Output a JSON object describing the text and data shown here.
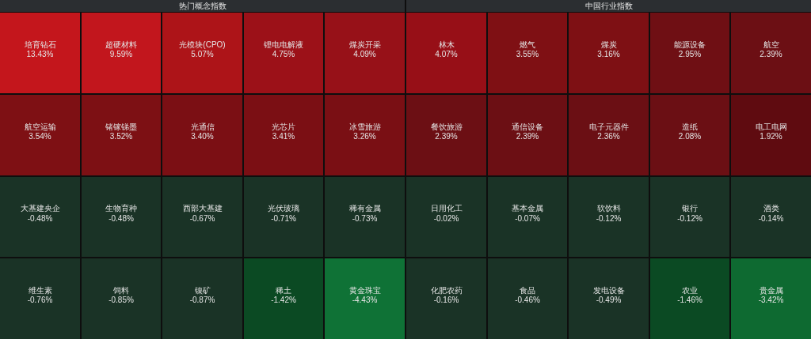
{
  "chart_data": [
    {
      "type": "other",
      "title": "热门概念指数",
      "categories": [
        "培育钻石",
        "超硬材料",
        "光模块(CPO)",
        "锂电电解液",
        "煤炭开采",
        "航空运输",
        "锗镓锑墨",
        "光通信",
        "光芯片",
        "冰雪旅游",
        "大基建央企",
        "生物育种",
        "西部大基建",
        "光伏玻璃",
        "稀有金属",
        "维生素",
        "饲料",
        "镍矿",
        "稀土",
        "黄金珠宝"
      ],
      "values": [
        13.43,
        9.59,
        5.07,
        4.75,
        4.09,
        3.54,
        3.52,
        3.4,
        3.41,
        3.26,
        -0.48,
        -0.48,
        -0.67,
        -0.71,
        -0.73,
        -0.76,
        -0.85,
        -0.87,
        -1.42,
        -4.43
      ],
      "value_labels": [
        "13.43%",
        "9.59%",
        "5.07%",
        "4.75%",
        "4.09%",
        "3.54%",
        "3.52%",
        "3.40%",
        "3.41%",
        "3.26%",
        "-0.48%",
        "-0.48%",
        "-0.67%",
        "-0.71%",
        "-0.73%",
        "-0.76%",
        "-0.85%",
        "-0.87%",
        "-1.42%",
        "-4.43%"
      ],
      "colors": [
        "#c4161c",
        "#c2161d",
        "#ad1418",
        "#9c1118",
        "#971118",
        "#7e1014",
        "#7d1014",
        "#7b0f14",
        "#7b0f14",
        "#7a0f14",
        "#1a3326",
        "#1a3326",
        "#1a3326",
        "#1a3326",
        "#1a3326",
        "#1a3326",
        "#1a3326",
        "#1a3326",
        "#0b4a23",
        "#0f7236"
      ]
    },
    {
      "type": "other",
      "title": "中国行业指数",
      "categories": [
        "林木",
        "燃气",
        "煤炭",
        "能源设备",
        "航空",
        "餐饮旅游",
        "通信设备",
        "电子元器件",
        "造纸",
        "电工电网",
        "日用化工",
        "基本金属",
        "软饮料",
        "银行",
        "酒类",
        "化肥农药",
        "食品",
        "发电设备",
        "农业",
        "贵金属"
      ],
      "values": [
        4.07,
        3.55,
        3.16,
        2.95,
        2.39,
        2.39,
        2.39,
        2.36,
        2.08,
        1.92,
        -0.02,
        -0.07,
        -0.12,
        -0.12,
        -0.14,
        -0.16,
        -0.46,
        -0.49,
        -1.46,
        -3.42
      ],
      "value_labels": [
        "4.07%",
        "3.55%",
        "3.16%",
        "2.95%",
        "2.39%",
        "2.39%",
        "2.39%",
        "2.36%",
        "2.08%",
        "1.92%",
        "-0.02%",
        "-0.07%",
        "-0.12%",
        "-0.12%",
        "-0.14%",
        "-0.16%",
        "-0.46%",
        "-0.49%",
        "-1.46%",
        "-3.42%"
      ],
      "colors": [
        "#970f17",
        "#7f1014",
        "#7e1014",
        "#6f0f14",
        "#6c0f14",
        "#6c0f14",
        "#6c0f14",
        "#6b0f14",
        "#6b0f14",
        "#5f0b10",
        "#1a3326",
        "#1a3326",
        "#1a3326",
        "#1a3326",
        "#1a3326",
        "#1a3326",
        "#1a3326",
        "#1a3326",
        "#0b4a23",
        "#0e6a31"
      ]
    }
  ]
}
